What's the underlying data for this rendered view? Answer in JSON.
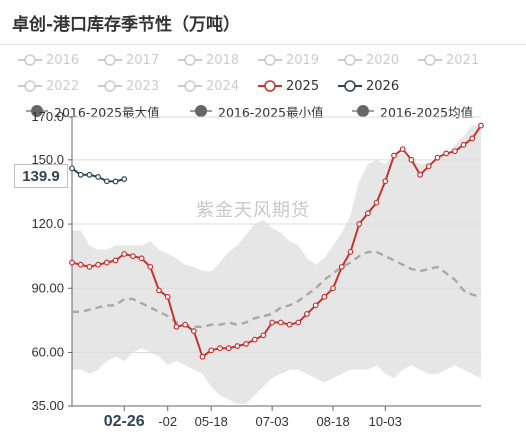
{
  "title": "卓创-港口库存季节性（万吨）",
  "watermark": "紫金天风期货",
  "callout_value": "139.9",
  "legend": {
    "years": [
      {
        "label": "2016",
        "active": false
      },
      {
        "label": "2017",
        "active": false
      },
      {
        "label": "2018",
        "active": false
      },
      {
        "label": "2019",
        "active": false
      },
      {
        "label": "2020",
        "active": false
      },
      {
        "label": "2021",
        "active": false
      },
      {
        "label": "2022",
        "active": false
      },
      {
        "label": "2023",
        "active": false
      },
      {
        "label": "2024",
        "active": false
      },
      {
        "label": "2025",
        "active": true,
        "color": "#c23531"
      },
      {
        "label": "2026",
        "active": true,
        "color": "#2f4554"
      }
    ],
    "aggregates": [
      {
        "label": "2016-2025最大值"
      },
      {
        "label": "2016-2025最小值"
      },
      {
        "label": "2016-2025均值"
      }
    ]
  },
  "colors": {
    "s2025": "#c23531",
    "s2026": "#2f4554",
    "band": "#e6e6e6",
    "mean": "#a8a8a8",
    "legend_inactive": "#cccccc"
  },
  "chart_data": {
    "type": "line",
    "ylim": [
      35,
      170
    ],
    "yticks": [
      "35.00",
      "60.00",
      "90.00",
      "120.0",
      "150.0",
      "170.0"
    ],
    "xticks": [
      {
        "label": "02-26",
        "bold": true,
        "idx": 6
      },
      {
        "label": "-02",
        "bold": false,
        "idx": 11
      },
      {
        "label": "05-18",
        "bold": false,
        "idx": 16
      },
      {
        "label": "07-03",
        "bold": false,
        "idx": 23
      },
      {
        "label": "08-18",
        "bold": false,
        "idx": 30
      },
      {
        "label": "10-03",
        "bold": false,
        "idx": 36
      }
    ],
    "points_count": 48,
    "series": [
      {
        "name": "2025",
        "values": [
          102,
          101,
          100,
          101,
          102,
          103,
          106,
          105,
          104,
          100,
          89,
          86,
          72,
          73,
          70,
          58,
          61,
          62,
          62,
          63,
          64,
          66,
          68,
          74,
          74,
          73,
          74,
          78,
          82,
          86,
          90,
          100,
          107,
          120,
          125,
          130,
          140,
          152,
          155,
          150,
          143,
          147,
          151,
          153,
          154,
          157,
          160,
          166
        ]
      },
      {
        "name": "2026",
        "values": [
          146,
          143,
          143,
          142,
          140,
          139.9,
          141
        ]
      }
    ],
    "max_band": [
      117,
      117,
      110,
      108,
      108,
      110,
      110,
      110,
      110,
      112,
      108,
      106,
      104,
      101,
      100,
      98,
      98,
      102,
      107,
      110,
      115,
      120,
      122,
      118,
      116,
      112,
      110,
      104,
      101,
      104,
      110,
      116,
      124,
      140,
      148,
      150,
      148,
      152,
      153,
      150,
      148,
      148,
      150,
      152,
      157,
      161,
      166,
      166
    ],
    "min_band": [
      52,
      52,
      50,
      52,
      56,
      58,
      56,
      60,
      62,
      60,
      58,
      54,
      56,
      54,
      52,
      50,
      44,
      40,
      38,
      36,
      36,
      40,
      44,
      48,
      50,
      52,
      52,
      50,
      48,
      46,
      48,
      50,
      52,
      52,
      52,
      54,
      50,
      48,
      52,
      54,
      52,
      50,
      50,
      52,
      54,
      52,
      50,
      48
    ],
    "mean": [
      79,
      79,
      80,
      81,
      82,
      82,
      85,
      85,
      83,
      81,
      79,
      77,
      74,
      73,
      72,
      72,
      73,
      73,
      74,
      73,
      74,
      76,
      77,
      78,
      81,
      82,
      84,
      87,
      90,
      94,
      97,
      100,
      102,
      105,
      107,
      107,
      105,
      103,
      101,
      99,
      98,
      99,
      100,
      97,
      94,
      89,
      87,
      86
    ]
  }
}
